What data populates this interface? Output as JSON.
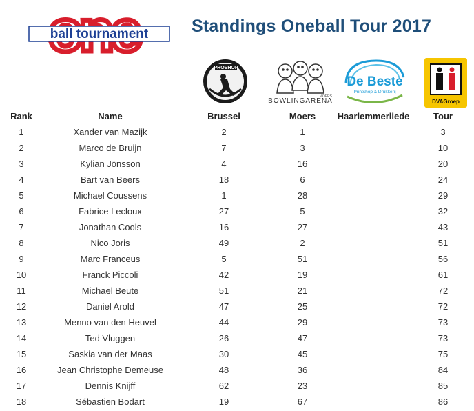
{
  "header": {
    "logo_big": "one",
    "logo_banner": "ball tournament",
    "title": "Standings Oneball Tour 2017"
  },
  "sponsors": [
    {
      "name": "proshop-logo",
      "text": "PROSHOP"
    },
    {
      "name": "bowlingarena-logo",
      "text": "BOWLINGARENA",
      "sub": "MOERS"
    },
    {
      "name": "debeste-logo",
      "text": "De Beste",
      "sub": "Printshop & Drukkerij"
    },
    {
      "name": "dva-logo",
      "text": "DVAGroep"
    }
  ],
  "colors": {
    "title": "#1f4e79",
    "logo_red": "#d81e2c",
    "logo_blue": "#1c3f94",
    "dva_yellow": "#f6c500"
  },
  "table": {
    "headers": [
      "Rank",
      "Name",
      "Brussel",
      "Moers",
      "Haarlemmerliede",
      "Tour"
    ],
    "rows": [
      [
        "1",
        "Xander van Mazijk",
        "2",
        "1",
        "",
        "3"
      ],
      [
        "2",
        "Marco de Bruijn",
        "7",
        "3",
        "",
        "10"
      ],
      [
        "3",
        "Kylian Jönsson",
        "4",
        "16",
        "",
        "20"
      ],
      [
        "4",
        "Bart van Beers",
        "18",
        "6",
        "",
        "24"
      ],
      [
        "5",
        "Michael Coussens",
        "1",
        "28",
        "",
        "29"
      ],
      [
        "6",
        "Fabrice Lecloux",
        "27",
        "5",
        "",
        "32"
      ],
      [
        "7",
        "Jonathan Cools",
        "16",
        "27",
        "",
        "43"
      ],
      [
        "8",
        "Nico Joris",
        "49",
        "2",
        "",
        "51"
      ],
      [
        "9",
        "Marc Franceus",
        "5",
        "51",
        "",
        "56"
      ],
      [
        "10",
        "Franck Piccoli",
        "42",
        "19",
        "",
        "61"
      ],
      [
        "11",
        "Michael Beute",
        "51",
        "21",
        "",
        "72"
      ],
      [
        "12",
        "Daniel Arold",
        "47",
        "25",
        "",
        "72"
      ],
      [
        "13",
        "Menno van den Heuvel",
        "44",
        "29",
        "",
        "73"
      ],
      [
        "14",
        "Ted Vluggen",
        "26",
        "47",
        "",
        "73"
      ],
      [
        "15",
        "Saskia van der Maas",
        "30",
        "45",
        "",
        "75"
      ],
      [
        "16",
        "Jean Christophe Demeuse",
        "48",
        "36",
        "",
        "84"
      ],
      [
        "17",
        "Dennis Knijff",
        "62",
        "23",
        "",
        "85"
      ],
      [
        "18",
        "Sébastien Bodart",
        "19",
        "67",
        "",
        "86"
      ]
    ]
  }
}
